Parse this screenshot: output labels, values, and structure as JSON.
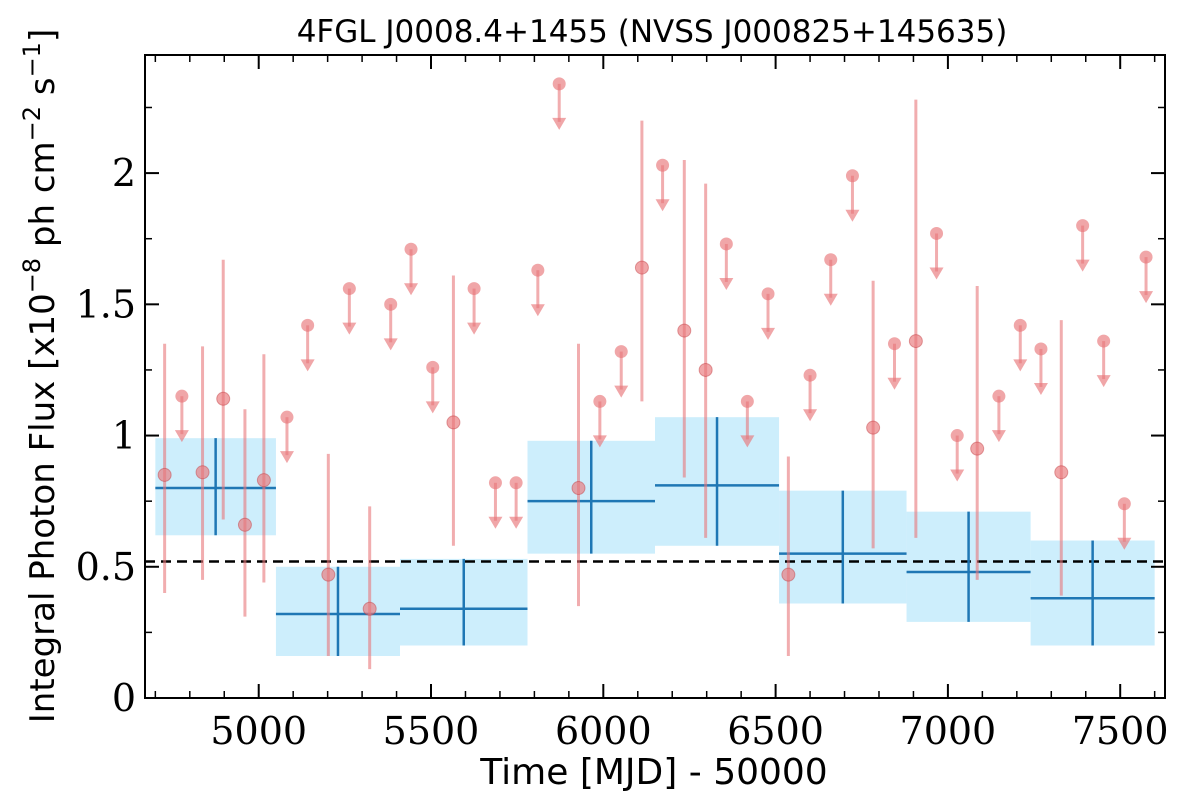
{
  "chart_data": {
    "type": "scatter",
    "title": "4FGL J0008.4+1455 (NVSS J000825+145635)",
    "xlabel": "Time [MJD] - 50000",
    "ylabel": "Integral Photon Flux [x10",
    "ylabel_exp1": "−8",
    "ylabel_mid": " ph cm",
    "ylabel_exp2": "−2",
    "ylabel_mid2": " s",
    "ylabel_exp3": "−1",
    "ylabel_end": "]",
    "xlim": [
      4670,
      7630
    ],
    "ylim": [
      0,
      2.45
    ],
    "xticks": [
      5000,
      5500,
      6000,
      6500,
      7000,
      7500
    ],
    "xtick_labels": [
      "5000",
      "5500",
      "6000",
      "6500",
      "7000",
      "7500"
    ],
    "yticks": [
      0,
      0.5,
      1,
      1.5,
      2
    ],
    "ytick_labels": [
      "0",
      "0.5",
      "1",
      "1.5",
      "2"
    ],
    "reference_level": 0.52,
    "colors": {
      "points": "#e8767a",
      "bins": "#1f77b4",
      "band": "#cdeefc",
      "reference": "#000000"
    },
    "detections": [
      {
        "x": 4727,
        "y": 0.85,
        "ylo": 0.4,
        "yhi": 1.35
      },
      {
        "x": 4837,
        "y": 0.86,
        "ylo": 0.45,
        "yhi": 1.34
      },
      {
        "x": 4897,
        "y": 1.14,
        "ylo": 0.68,
        "yhi": 1.67
      },
      {
        "x": 4960,
        "y": 0.66,
        "ylo": 0.31,
        "yhi": 1.1
      },
      {
        "x": 5015,
        "y": 0.83,
        "ylo": 0.44,
        "yhi": 1.31
      },
      {
        "x": 5202,
        "y": 0.47,
        "ylo": 0.16,
        "yhi": 0.93
      },
      {
        "x": 5322,
        "y": 0.34,
        "ylo": 0.11,
        "yhi": 0.73
      },
      {
        "x": 5565,
        "y": 1.05,
        "ylo": 0.58,
        "yhi": 1.61
      },
      {
        "x": 5928,
        "y": 0.8,
        "ylo": 0.35,
        "yhi": 1.35
      },
      {
        "x": 6112,
        "y": 1.64,
        "ylo": 1.13,
        "yhi": 2.2
      },
      {
        "x": 6235,
        "y": 1.4,
        "ylo": 0.84,
        "yhi": 2.05
      },
      {
        "x": 6297,
        "y": 1.25,
        "ylo": 0.61,
        "yhi": 1.96
      },
      {
        "x": 6537,
        "y": 0.47,
        "ylo": 0.16,
        "yhi": 0.92
      },
      {
        "x": 6783,
        "y": 1.03,
        "ylo": 0.57,
        "yhi": 1.59
      },
      {
        "x": 6907,
        "y": 1.36,
        "ylo": 0.61,
        "yhi": 2.28
      },
      {
        "x": 7085,
        "y": 0.95,
        "ylo": 0.45,
        "yhi": 1.57
      },
      {
        "x": 7329,
        "y": 0.86,
        "ylo": 0.39,
        "yhi": 1.44
      }
    ],
    "upper_limits": [
      {
        "x": 4777,
        "y": 1.15
      },
      {
        "x": 5082,
        "y": 1.07
      },
      {
        "x": 5142,
        "y": 1.42
      },
      {
        "x": 5263,
        "y": 1.56
      },
      {
        "x": 5383,
        "y": 1.5
      },
      {
        "x": 5442,
        "y": 1.71
      },
      {
        "x": 5505,
        "y": 1.26
      },
      {
        "x": 5625,
        "y": 1.56
      },
      {
        "x": 5687,
        "y": 0.82
      },
      {
        "x": 5747,
        "y": 0.82
      },
      {
        "x": 5810,
        "y": 1.63
      },
      {
        "x": 5872,
        "y": 2.34
      },
      {
        "x": 5990,
        "y": 1.13
      },
      {
        "x": 6052,
        "y": 1.32
      },
      {
        "x": 6172,
        "y": 2.03
      },
      {
        "x": 6357,
        "y": 1.73
      },
      {
        "x": 6418,
        "y": 1.13
      },
      {
        "x": 6478,
        "y": 1.54
      },
      {
        "x": 6600,
        "y": 1.23
      },
      {
        "x": 6660,
        "y": 1.67
      },
      {
        "x": 6723,
        "y": 1.99
      },
      {
        "x": 6845,
        "y": 1.35
      },
      {
        "x": 6967,
        "y": 1.77
      },
      {
        "x": 7027,
        "y": 1.0
      },
      {
        "x": 7148,
        "y": 1.15
      },
      {
        "x": 7210,
        "y": 1.42
      },
      {
        "x": 7270,
        "y": 1.33
      },
      {
        "x": 7391,
        "y": 1.8
      },
      {
        "x": 7452,
        "y": 1.36
      },
      {
        "x": 7512,
        "y": 0.74
      },
      {
        "x": 7575,
        "y": 1.68
      }
    ],
    "bins": [
      {
        "x0": 4700,
        "x1": 5050,
        "xc": 4875,
        "y": 0.8,
        "ylo": 0.62,
        "yhi": 0.99
      },
      {
        "x0": 5050,
        "x1": 5410,
        "xc": 5230,
        "y": 0.32,
        "ylo": 0.16,
        "yhi": 0.5
      },
      {
        "x0": 5410,
        "x1": 5780,
        "xc": 5595,
        "y": 0.34,
        "ylo": 0.2,
        "yhi": 0.53
      },
      {
        "x0": 5780,
        "x1": 6150,
        "xc": 5965,
        "y": 0.75,
        "ylo": 0.55,
        "yhi": 0.98
      },
      {
        "x0": 6150,
        "x1": 6510,
        "xc": 6330,
        "y": 0.81,
        "ylo": 0.58,
        "yhi": 1.07
      },
      {
        "x0": 6510,
        "x1": 6880,
        "xc": 6695,
        "y": 0.55,
        "ylo": 0.36,
        "yhi": 0.79
      },
      {
        "x0": 6880,
        "x1": 7240,
        "xc": 7060,
        "y": 0.48,
        "ylo": 0.29,
        "yhi": 0.71
      },
      {
        "x0": 7240,
        "x1": 7600,
        "xc": 7420,
        "y": 0.38,
        "ylo": 0.2,
        "yhi": 0.6
      }
    ]
  }
}
